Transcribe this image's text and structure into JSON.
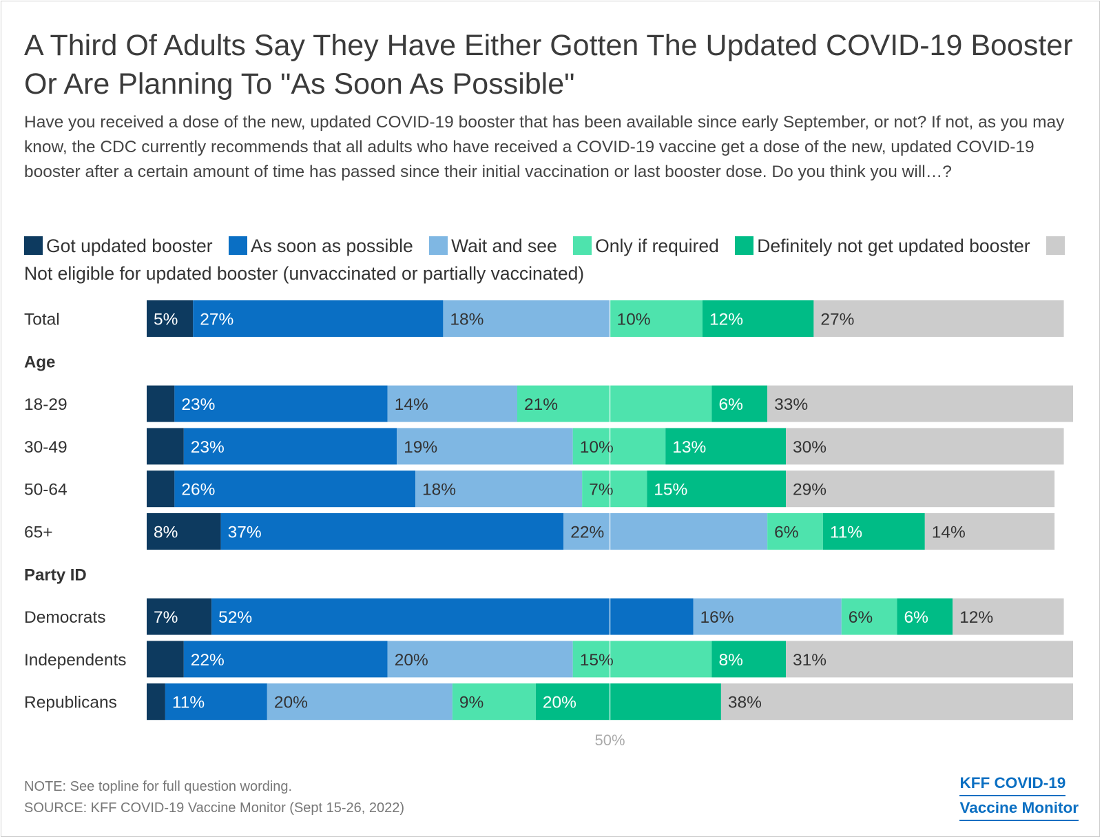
{
  "title": "A Third Of Adults Say They Have Either Gotten The Updated COVID-19 Booster Or Are Planning To \"As Soon As Possible\"",
  "subtitle": "Have you received a dose of the new, updated COVID-19 booster that has been available since early September, or not? If not, as you may know, the CDC currently recommends that all adults who have received a COVID-19 vaccine get a dose of the new, updated COVID-19 booster after a certain amount of time has passed since their initial vaccination or last booster dose. Do you think you will…?",
  "legend": [
    {
      "label": "Got updated booster",
      "color": "#0d3a5f"
    },
    {
      "label": "As soon as possible",
      "color": "#0a6fc4"
    },
    {
      "label": "Wait and see",
      "color": "#7fb7e3"
    },
    {
      "label": "Only if required",
      "color": "#4ee3ad"
    },
    {
      "label": "Definitely not get updated booster",
      "color": "#00bc86"
    },
    {
      "label": "Not eligible for updated booster (unvaccinated or partially vaccinated)",
      "color": "#cccccc"
    }
  ],
  "note": "NOTE: See topline for full question wording.",
  "source": "SOURCE: KFF COVID-19 Vaccine Monitor (Sept 15-26, 2022)",
  "logo": {
    "line1": "KFF COVID-19",
    "line2": "Vaccine Monitor"
  },
  "chart_data": {
    "type": "bar",
    "orientation": "horizontal",
    "stacked": true,
    "xtick": "50%",
    "reference_line": 50,
    "series_names": [
      "Got updated booster",
      "As soon as possible",
      "Wait and see",
      "Only if required",
      "Definitely not get updated booster",
      "Not eligible for updated booster (unvaccinated or partially vaccinated)"
    ],
    "colors": [
      "#0d3a5f",
      "#0a6fc4",
      "#7fb7e3",
      "#4ee3ad",
      "#00bc86",
      "#cccccc"
    ],
    "label_colors": [
      "#ffffff",
      "#ffffff",
      "#333333",
      "#333333",
      "#ffffff",
      "#333333"
    ],
    "rows": [
      {
        "label": "Total",
        "values": [
          5,
          27,
          18,
          10,
          12,
          27
        ],
        "labels": [
          "5%",
          "27%",
          "18%",
          "10%",
          "12%",
          "27%"
        ]
      },
      {
        "header": "Age"
      },
      {
        "label": "18-29",
        "values": [
          3,
          23,
          14,
          21,
          6,
          33
        ],
        "labels": [
          "",
          "23%",
          "14%",
          "21%",
          "6%",
          "33%"
        ]
      },
      {
        "label": "30-49",
        "values": [
          4,
          23,
          19,
          10,
          13,
          30
        ],
        "labels": [
          "",
          "23%",
          "19%",
          "10%",
          "13%",
          "30%"
        ]
      },
      {
        "label": "50-64",
        "values": [
          3,
          26,
          18,
          7,
          15,
          29
        ],
        "labels": [
          "",
          "26%",
          "18%",
          "7%",
          "15%",
          "29%"
        ]
      },
      {
        "label": "65+",
        "values": [
          8,
          37,
          22,
          6,
          11,
          14
        ],
        "labels": [
          "8%",
          "37%",
          "22%",
          "6%",
          "11%",
          "14%"
        ]
      },
      {
        "header": "Party ID"
      },
      {
        "label": "Democrats",
        "values": [
          7,
          52,
          16,
          6,
          6,
          12
        ],
        "labels": [
          "7%",
          "52%",
          "16%",
          "6%",
          "6%",
          "12%"
        ]
      },
      {
        "label": "Independents",
        "values": [
          4,
          22,
          20,
          15,
          8,
          31
        ],
        "labels": [
          "",
          "22%",
          "20%",
          "15%",
          "8%",
          "31%"
        ]
      },
      {
        "label": "Republicans",
        "values": [
          2,
          11,
          20,
          9,
          20,
          38
        ],
        "labels": [
          "",
          "11%",
          "20%",
          "9%",
          "20%",
          "38%"
        ]
      }
    ]
  }
}
